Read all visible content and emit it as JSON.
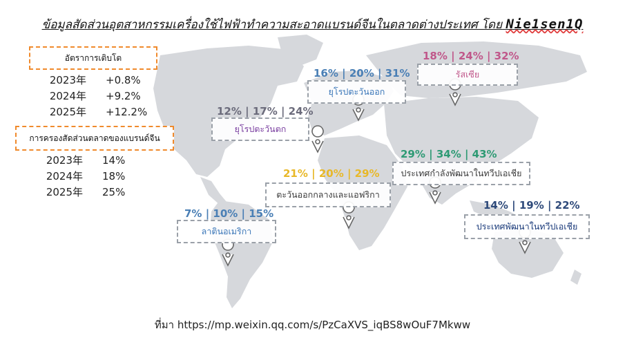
{
  "title": {
    "text": "ข้อมูลสัดส่วนอุตสาหกรรมเครื่องใช้ไฟฟ้าทำความสะอาดแบรนด์จีนในตลาดต่างประเทศ โดย",
    "brand": "Nie1sen1Q"
  },
  "growth": {
    "label": "อัตราการเติบโต",
    "rows": [
      {
        "year": "2023年",
        "value": "+0.8%"
      },
      {
        "year": "2024年",
        "value": "+9.2%"
      },
      {
        "year": "2025年",
        "value": "+12.2%"
      }
    ]
  },
  "share": {
    "label": "การครองสัดส่วนตลาดของแบรนด์จีน",
    "rows": [
      {
        "year": "2023年",
        "value": "14%"
      },
      {
        "year": "2024年",
        "value": "18%"
      },
      {
        "year": "2025年",
        "value": "25%"
      }
    ]
  },
  "regions": [
    {
      "name": "รัสเซีย",
      "values": "18% | 24% | 32%",
      "color": "#c0578a"
    },
    {
      "name": "ยุโรปตะวันออก",
      "values": "16% | 20% | 31%",
      "color": "#4a7fb5"
    },
    {
      "name": "ยุโรปตะวันตก",
      "values": "12% | 17% | 24%",
      "color": "#6b6b7b"
    },
    {
      "name": "ประเทศกำลังพัฒนาในทวีปเอเชีย",
      "values": "29% | 34% | 43%",
      "color": "#2e9a74"
    },
    {
      "name": "ตะวันออกกลางและแอฟริกา",
      "values": "21% | 20% | 29%",
      "color": "#e8b828"
    },
    {
      "name": "ลาตินอเมริกา",
      "values": "7% | 10% | 15%",
      "color": "#4a7fb5"
    },
    {
      "name": "ประเทศพัฒนาในทวีปเอเชีย",
      "values": "14% | 19% | 22%",
      "color": "#2e4a7a"
    }
  ],
  "region_label_colors": [
    "#c0578a",
    "#3a76b8",
    "#7a3fa0",
    "#3a3a3a",
    "#3a3a3a",
    "#3a76b8",
    "#1a3a7a"
  ],
  "footer": "ที่มา https://mp.weixin.qq.com/s/PzCaXVS_iqBS8wOuF7Mkww"
}
